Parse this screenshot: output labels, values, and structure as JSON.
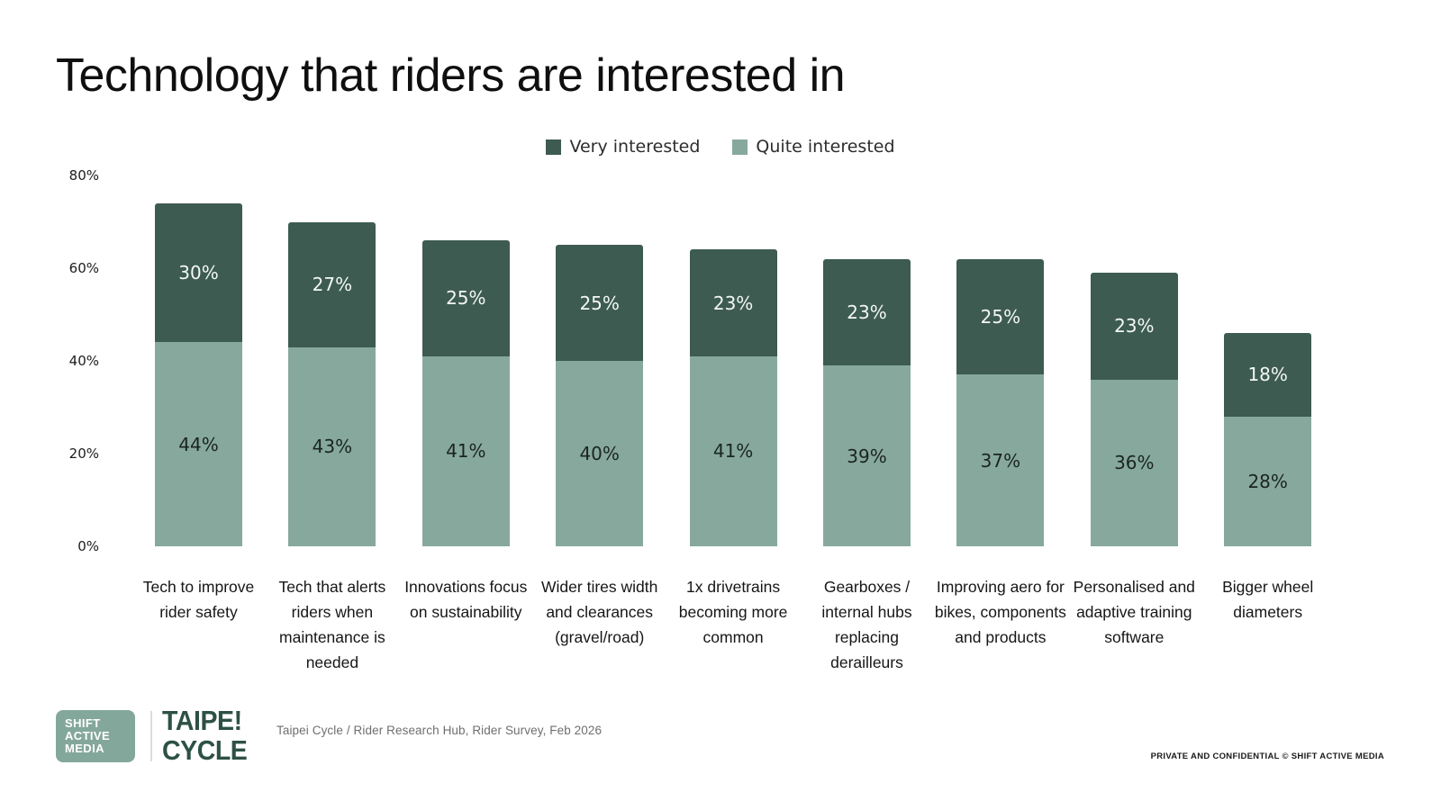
{
  "page": {
    "title": "Technology that riders are interested in"
  },
  "chart_data": {
    "type": "bar",
    "subtype": "stacked-vertical",
    "title": "Technology that riders are interested in",
    "categories": [
      "Tech to improve rider safety",
      "Tech that alerts riders when maintenance is needed",
      "Innovations focus on sustainability",
      "Wider tires width and clearances (gravel/road)",
      "1x drivetrains becoming more common",
      "Gearboxes / internal hubs replacing derailleurs",
      "Improving aero for bikes, components and products",
      "Personalised and adaptive training software",
      "Bigger wheel diameters"
    ],
    "series": [
      {
        "name": "Very interested",
        "color": "#3d5b51",
        "label_color": "#f3f7f5",
        "values": [
          30,
          27,
          25,
          25,
          23,
          23,
          25,
          23,
          18
        ]
      },
      {
        "name": "Quite interested",
        "color": "#87a99d",
        "label_color": "#1b2420",
        "values": [
          44,
          43,
          41,
          40,
          41,
          39,
          37,
          36,
          28
        ]
      }
    ],
    "stack_order_bottom_to_top": [
      "Quite interested",
      "Very interested"
    ],
    "totals": [
      74,
      70,
      66,
      65,
      64,
      62,
      62,
      59,
      46
    ],
    "value_suffix": "%",
    "ylim": [
      0,
      80
    ],
    "y_ticks": [
      {
        "label": "80%",
        "value": 80
      },
      {
        "label": "60%",
        "value": 60
      },
      {
        "label": "40%",
        "value": 40
      },
      {
        "label": "20%",
        "value": 20
      },
      {
        "label": "0%",
        "value": 0
      }
    ],
    "grid": false,
    "legend_position": "top-center"
  },
  "footer": {
    "shift_logo": {
      "lines": [
        "SHIFT",
        "ACTIVE",
        "MEDIA"
      ],
      "bg": "#84a79b"
    },
    "taipei_logo": {
      "lines": [
        "TAIPE!",
        "CYCLE"
      ],
      "color": "#2d5144"
    },
    "source": "Taipei Cycle / Rider Research Hub, Rider Survey, Feb 2026",
    "confidential": "PRIVATE AND CONFIDENTIAL © SHIFT ACTIVE MEDIA"
  }
}
